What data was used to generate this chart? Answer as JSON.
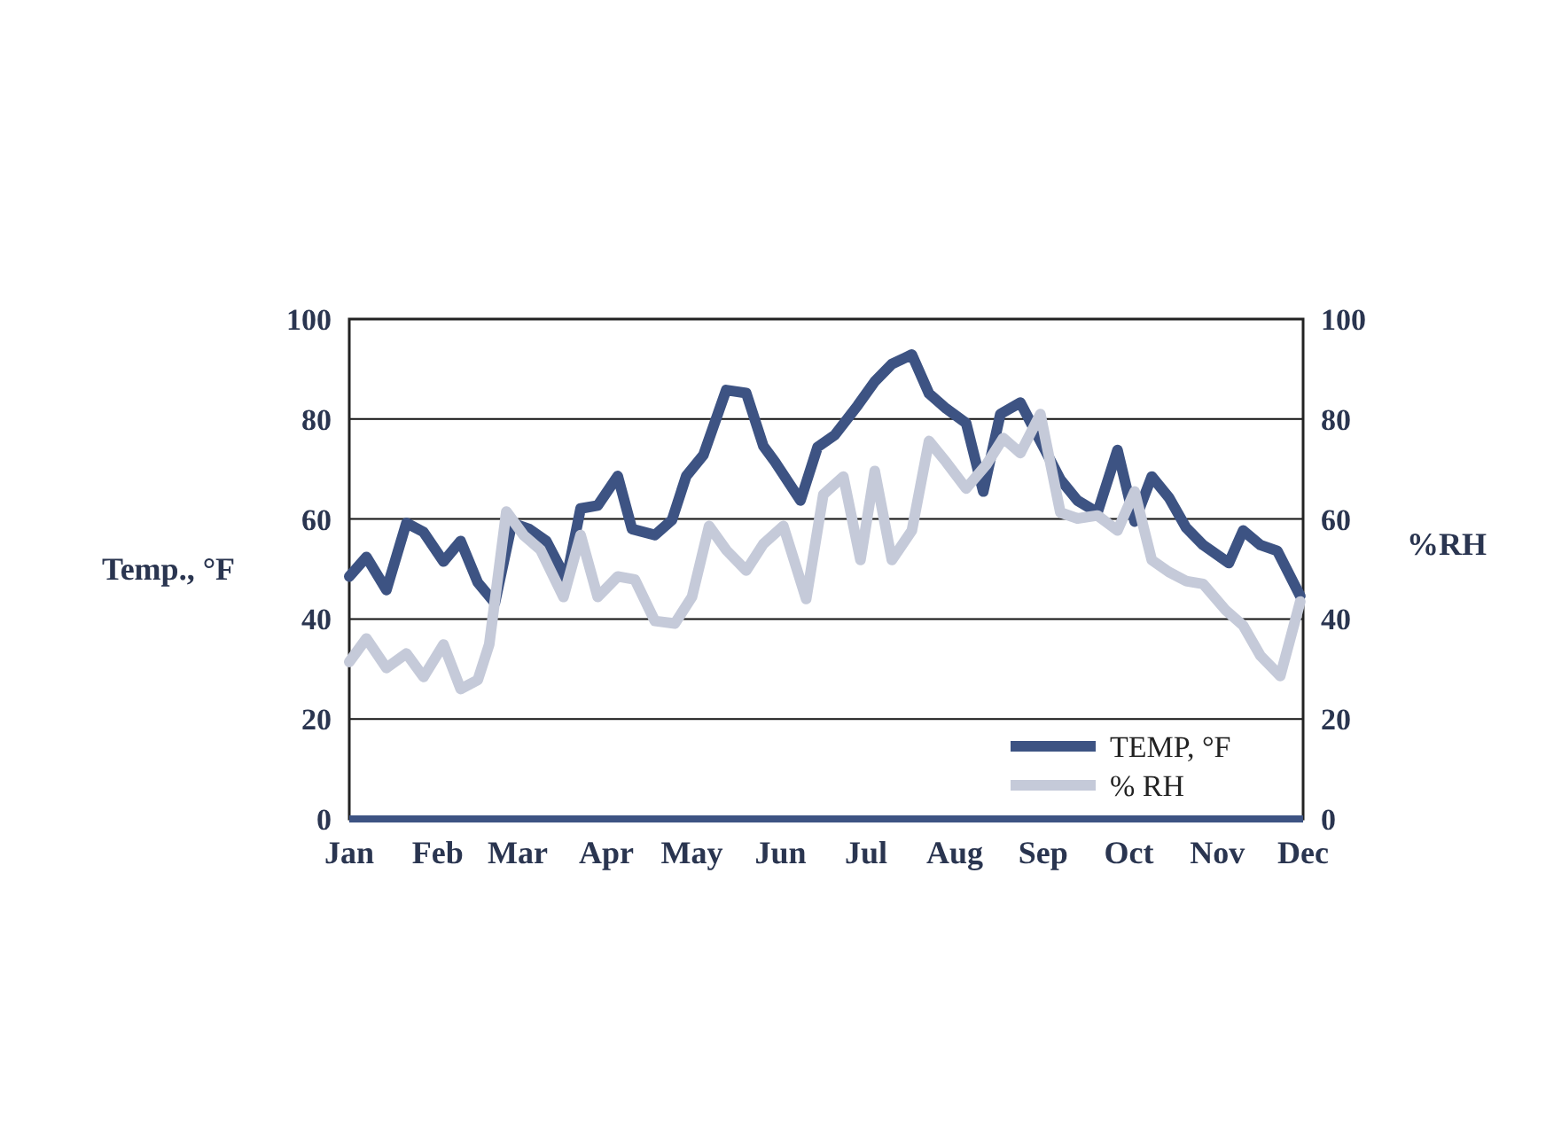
{
  "chart_data": {
    "type": "line",
    "ylabel": "Temp., °F",
    "y2label": "%RH",
    "xlim": [
      "--01-01",
      "--12-01"
    ],
    "xticks": [
      {
        "value": "--01-01",
        "label": "Jan"
      },
      {
        "value": "--02-01",
        "label": "Feb"
      },
      {
        "value": "--03-01",
        "label": "Mar"
      },
      {
        "value": "--04-01",
        "label": "Apr"
      },
      {
        "value": "--05-01",
        "label": "May"
      },
      {
        "value": "--06-01",
        "label": "Jun"
      },
      {
        "value": "--07-01",
        "label": "Jul"
      },
      {
        "value": "--08-01",
        "label": "Aug"
      },
      {
        "value": "--09-01",
        "label": "Sep"
      },
      {
        "value": "--10-01",
        "label": "Oct"
      },
      {
        "value": "--11-01",
        "label": "Nov"
      },
      {
        "value": "--12-01",
        "label": "Dec"
      }
    ],
    "ylim": [
      0,
      100
    ],
    "yticks": [
      0,
      20,
      40,
      60,
      80,
      100
    ],
    "y2lim": [
      0,
      100
    ],
    "y2ticks": [
      0,
      20,
      40,
      60,
      80,
      100
    ],
    "grid": "y",
    "legend": "bottom right",
    "marker": "none",
    "line_style": "solid",
    "series": [
      {
        "name": "TEMP, °F",
        "color": "#3d5383",
        "x": [
          "--01-01",
          "--01-07",
          "--01-14",
          "--01-21",
          "--01-27",
          "--02-03",
          "--02-09",
          "--02-15",
          "--02-21",
          "--02-27",
          "--03-05",
          "--03-11",
          "--03-18",
          "--03-23",
          "--03-29",
          "--04-05",
          "--04-10",
          "--04-18",
          "--04-24",
          "--04-29",
          "--05-05",
          "--05-13",
          "--05-20",
          "--05-26",
          "--05-30",
          "--06-08",
          "--06-14",
          "--06-20",
          "--06-28",
          "--07-04",
          "--07-10",
          "--07-17",
          "--07-23",
          "--07-29",
          "--08-05",
          "--08-11",
          "--08-17",
          "--08-24",
          "--08-31",
          "--09-07",
          "--09-13",
          "--09-20",
          "--09-27",
          "--10-03",
          "--10-09",
          "--10-15",
          "--10-21",
          "--10-27",
          "--11-05",
          "--11-10",
          "--11-16",
          "--11-22",
          "--11-30"
        ],
        "values": [
          48.5,
          52.4,
          45.8,
          59.2,
          57.4,
          51.5,
          55.6,
          47.3,
          43.2,
          59.2,
          58,
          55.6,
          47.9,
          62.1,
          62.7,
          68.6,
          58,
          56.8,
          59.8,
          68.6,
          72.8,
          85.8,
          85.2,
          74.6,
          71.5,
          63.7,
          74.4,
          76.8,
          82.7,
          87.5,
          91,
          92.9,
          85.1,
          82.1,
          79.2,
          65.5,
          81,
          83.3,
          75.6,
          67.9,
          63.7,
          61.3,
          73.8,
          59.5,
          68.5,
          64.3,
          58.3,
          54.8,
          51.2,
          57.7,
          54.8,
          53.6,
          44.6
        ]
      },
      {
        "name": "% RH",
        "color": "#c5cad9",
        "axis": "y2",
        "x": [
          "--01-01",
          "--01-07",
          "--01-14",
          "--01-21",
          "--01-27",
          "--02-03",
          "--02-09",
          "--02-15",
          "--02-19",
          "--02-25",
          "--03-03",
          "--03-09",
          "--03-17",
          "--03-23",
          "--03-29",
          "--04-05",
          "--04-11",
          "--04-18",
          "--04-25",
          "--05-01",
          "--05-07",
          "--05-13",
          "--05-20",
          "--05-26",
          "--06-02",
          "--06-10",
          "--06-16",
          "--06-23",
          "--06-29",
          "--07-04",
          "--07-10",
          "--07-17",
          "--07-23",
          "--07-29",
          "--08-05",
          "--08-12",
          "--08-18",
          "--08-24",
          "--08-31",
          "--09-07",
          "--09-13",
          "--09-20",
          "--09-27",
          "--10-03",
          "--10-09",
          "--10-15",
          "--10-21",
          "--10-27",
          "--11-04",
          "--11-10",
          "--11-16",
          "--11-23",
          "--11-30"
        ],
        "values": [
          31.4,
          36.1,
          30.2,
          33.1,
          28.4,
          34.9,
          26,
          27.8,
          34.9,
          61.5,
          56.8,
          53.8,
          44.4,
          56.8,
          44.4,
          48.5,
          47.9,
          39.6,
          39.1,
          44.4,
          58.6,
          53.8,
          49.7,
          55,
          58.6,
          44,
          64.9,
          68.5,
          51.8,
          69.6,
          51.8,
          57.7,
          75.6,
          71.4,
          66.1,
          70.8,
          76.2,
          73.2,
          81,
          61.3,
          60.1,
          60.7,
          57.7,
          65.5,
          51.8,
          49.4,
          47.6,
          47,
          41.7,
          38.7,
          32.7,
          28.6,
          43.5
        ]
      }
    ]
  }
}
